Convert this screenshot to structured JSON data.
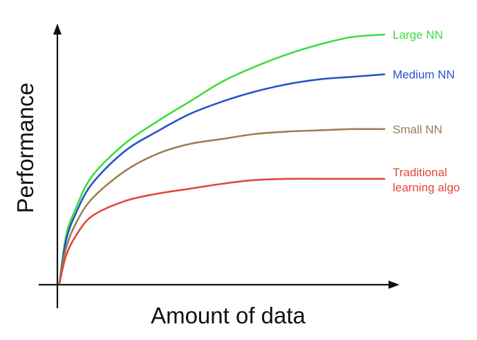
{
  "chart_data": {
    "type": "line",
    "xlabel": "Amount of data",
    "ylabel": "Performance",
    "xlim": [
      0,
      100
    ],
    "ylim": [
      0,
      100
    ],
    "grid": false,
    "legend": "inline-right",
    "series": [
      {
        "name": "Large NN",
        "label_lines": [
          "Large NN"
        ],
        "color": "#3ddc3a",
        "x": [
          0,
          2,
          5,
          10,
          20,
          30,
          40,
          50,
          60,
          70,
          80,
          90,
          100
        ],
        "y": [
          0,
          19,
          30,
          43,
          56,
          65,
          73,
          81,
          87,
          92,
          96,
          99,
          100
        ]
      },
      {
        "name": "Medium NN",
        "label_lines": [
          "Medium NN"
        ],
        "color": "#2453c9",
        "x": [
          0,
          2,
          5,
          10,
          20,
          30,
          40,
          50,
          60,
          70,
          80,
          90,
          100
        ],
        "y": [
          0,
          17,
          28,
          40,
          53,
          61,
          68,
          73,
          77,
          80,
          82,
          83,
          84
        ]
      },
      {
        "name": "Small NN",
        "label_lines": [
          "Small NN"
        ],
        "color": "#9b7f52",
        "x": [
          0,
          2,
          5,
          10,
          20,
          30,
          40,
          50,
          60,
          70,
          80,
          90,
          100
        ],
        "y": [
          0,
          14,
          24,
          34,
          45,
          52,
          56,
          58,
          60,
          61,
          61.5,
          62,
          62
        ]
      },
      {
        "name": "Traditional learning algo",
        "label_lines": [
          "Traditional",
          "learning algo"
        ],
        "color": "#e0473b",
        "x": [
          0,
          2,
          5,
          10,
          20,
          30,
          40,
          50,
          60,
          70,
          80,
          90,
          100
        ],
        "y": [
          0,
          11,
          19,
          27,
          33,
          36,
          38,
          40,
          41.5,
          42,
          42,
          42,
          42
        ]
      }
    ]
  }
}
